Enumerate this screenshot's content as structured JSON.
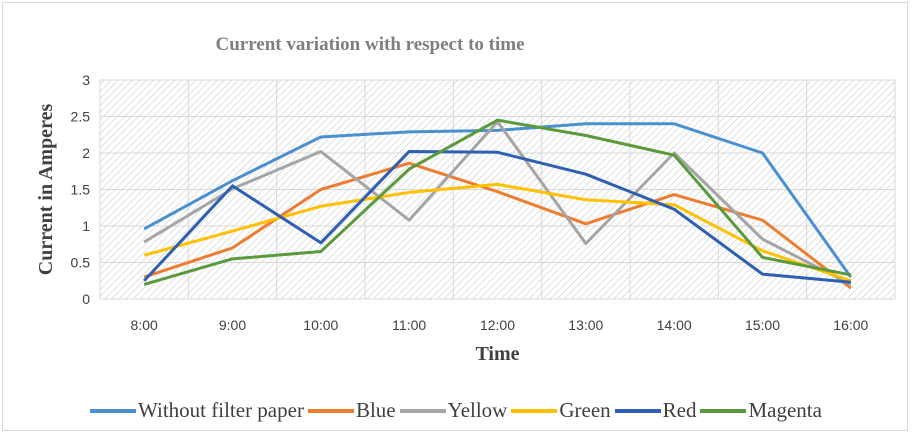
{
  "chart_data": {
    "type": "line",
    "title": "Current variation with respect to time",
    "xlabel": "Time",
    "ylabel": "Current in Amperes",
    "categories": [
      "8:00",
      "9:00",
      "10:00",
      "11:00",
      "12:00",
      "13:00",
      "14:00",
      "15:00",
      "16:00"
    ],
    "ylim": [
      0,
      3
    ],
    "yticks": [
      "0",
      "0.5",
      "1",
      "1.5",
      "2",
      "2.5",
      "3"
    ],
    "grid": true,
    "legend": "bottom",
    "series": [
      {
        "name": "Without filter paper",
        "color": "#4a90d0",
        "values": [
          0.96,
          1.62,
          2.22,
          2.29,
          2.31,
          2.4,
          2.4,
          2.0,
          0.3
        ]
      },
      {
        "name": "Blue",
        "color": "#ed7d31",
        "values": [
          0.3,
          0.7,
          1.5,
          1.86,
          1.47,
          1.03,
          1.43,
          1.08,
          0.15
        ]
      },
      {
        "name": "Yellow",
        "color": "#a5a5a5",
        "values": [
          0.78,
          1.51,
          2.02,
          1.08,
          2.43,
          0.76,
          2.0,
          0.82,
          0.2
        ]
      },
      {
        "name": "Green",
        "color": "#ffc000",
        "values": [
          0.6,
          0.93,
          1.27,
          1.46,
          1.57,
          1.36,
          1.29,
          0.66,
          0.25
        ]
      },
      {
        "name": "Red",
        "color": "#2f5fb3",
        "values": [
          0.25,
          1.55,
          0.77,
          2.02,
          2.01,
          1.71,
          1.23,
          0.34,
          0.23
        ]
      },
      {
        "name": "Magenta",
        "color": "#5b9a3c",
        "values": [
          0.2,
          0.55,
          0.65,
          1.78,
          2.45,
          2.24,
          1.97,
          0.57,
          0.33
        ]
      }
    ]
  }
}
